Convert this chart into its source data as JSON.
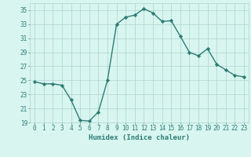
{
  "x": [
    0,
    1,
    2,
    3,
    4,
    5,
    6,
    7,
    8,
    9,
    10,
    11,
    12,
    13,
    14,
    15,
    16,
    17,
    18,
    19,
    20,
    21,
    22,
    23
  ],
  "y": [
    24.8,
    24.5,
    24.5,
    24.3,
    22.2,
    19.3,
    19.2,
    20.5,
    25.0,
    33.0,
    34.0,
    34.3,
    35.2,
    34.6,
    33.4,
    33.5,
    31.3,
    29.0,
    28.5,
    29.5,
    27.3,
    26.5,
    25.7,
    25.5
  ],
  "line_color": "#2d7d74",
  "marker": "D",
  "marker_size": 2.2,
  "bg_color": "#d8f5f0",
  "grid_color": "#aed4cc",
  "xlabel": "Humidex (Indice chaleur)",
  "xlim": [
    -0.5,
    23.5
  ],
  "ylim": [
    19,
    36
  ],
  "yticks": [
    19,
    21,
    23,
    25,
    27,
    29,
    31,
    33,
    35
  ],
  "xticks": [
    0,
    1,
    2,
    3,
    4,
    5,
    6,
    7,
    8,
    9,
    10,
    11,
    12,
    13,
    14,
    15,
    16,
    17,
    18,
    19,
    20,
    21,
    22,
    23
  ],
  "xlabel_fontsize": 6.5,
  "tick_fontsize": 5.5,
  "line_width": 1.0
}
